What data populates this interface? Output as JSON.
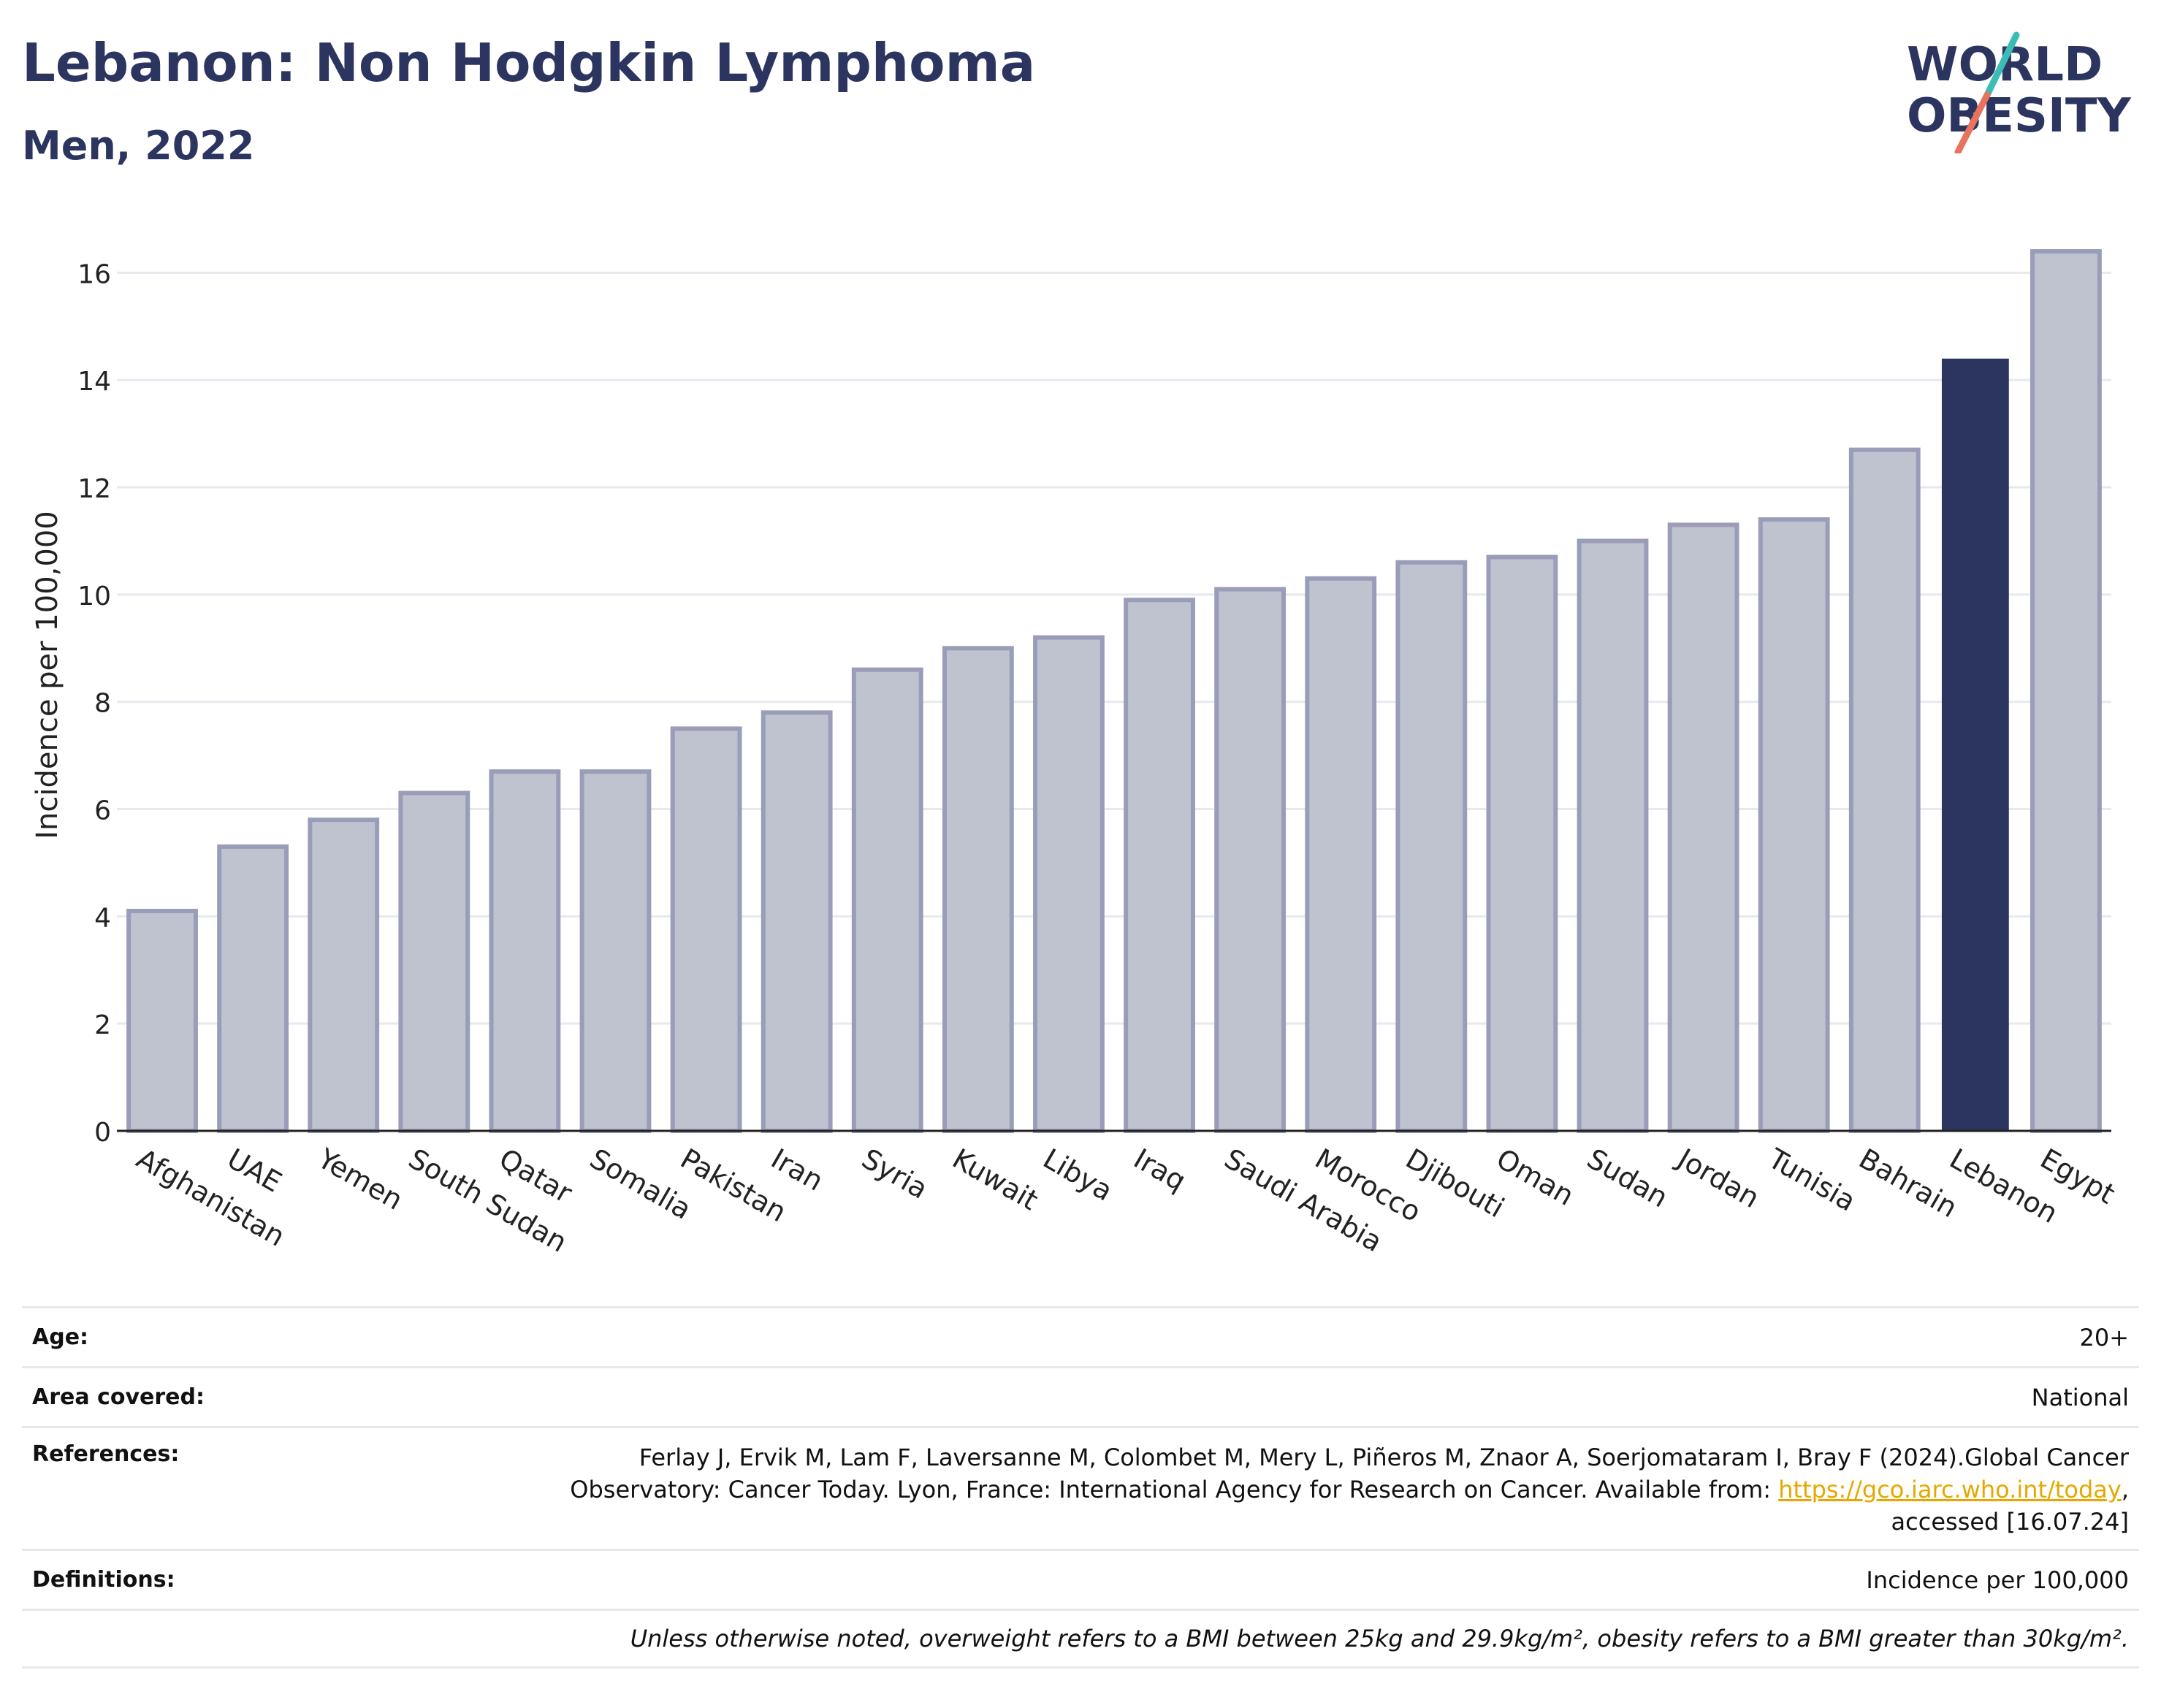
{
  "header": {
    "title": "Lebanon: Non Hodgkin Lymphoma",
    "subtitle": "Men, 2022"
  },
  "logo": {
    "line1": "WORLD",
    "line2": "OBESITY"
  },
  "chart_data": {
    "type": "bar",
    "ylabel": "Incidence per 100,000",
    "ylim": [
      0,
      17
    ],
    "yticks": [
      0,
      2,
      4,
      6,
      8,
      10,
      12,
      14,
      16
    ],
    "grid": true,
    "highlight": "Lebanon",
    "colors": {
      "bar": "#bfc2cf",
      "bar_edge": "#9a9db8",
      "highlight": "#2b3560",
      "grid": "#e7e9ef",
      "axis": "#222222"
    },
    "categories": [
      "Afghanistan",
      "UAE",
      "Yemen",
      "South Sudan",
      "Qatar",
      "Somalia",
      "Pakistan",
      "Iran",
      "Syria",
      "Kuwait",
      "Libya",
      "Iraq",
      "Saudi Arabia",
      "Morocco",
      "Djibouti",
      "Oman",
      "Sudan",
      "Jordan",
      "Tunisia",
      "Bahrain",
      "Lebanon",
      "Egypt"
    ],
    "values": [
      4.1,
      5.3,
      5.8,
      6.3,
      6.7,
      6.7,
      7.5,
      7.8,
      8.6,
      9.0,
      9.2,
      9.9,
      10.1,
      10.3,
      10.6,
      10.7,
      11.0,
      11.3,
      11.4,
      12.7,
      14.4,
      16.4
    ]
  },
  "info": {
    "age_label": "Age:",
    "age_value": "20+",
    "area_label": "Area covered:",
    "area_value": "National",
    "ref_label": "References:",
    "ref_line1": "Ferlay J, Ervik M, Lam F, Laversanne M, Colombet M, Mery L, Piñeros M, Znaor A, Soerjomataram I, Bray F (2024).Global Cancer",
    "ref_line2_pre": "Observatory: Cancer Today. Lyon, France: International Agency for Research on Cancer. Available from: ",
    "ref_link": "https://gco.iarc.who.int/today",
    "ref_line2_post": ",",
    "ref_line3": "accessed [16.07.24]",
    "def_label": "Definitions:",
    "def_value": "Incidence per 100,000",
    "note": "Unless otherwise noted, overweight refers to a BMI between 25kg and 29.9kg/m², obesity refers to a BMI greater than 30kg/m²."
  }
}
